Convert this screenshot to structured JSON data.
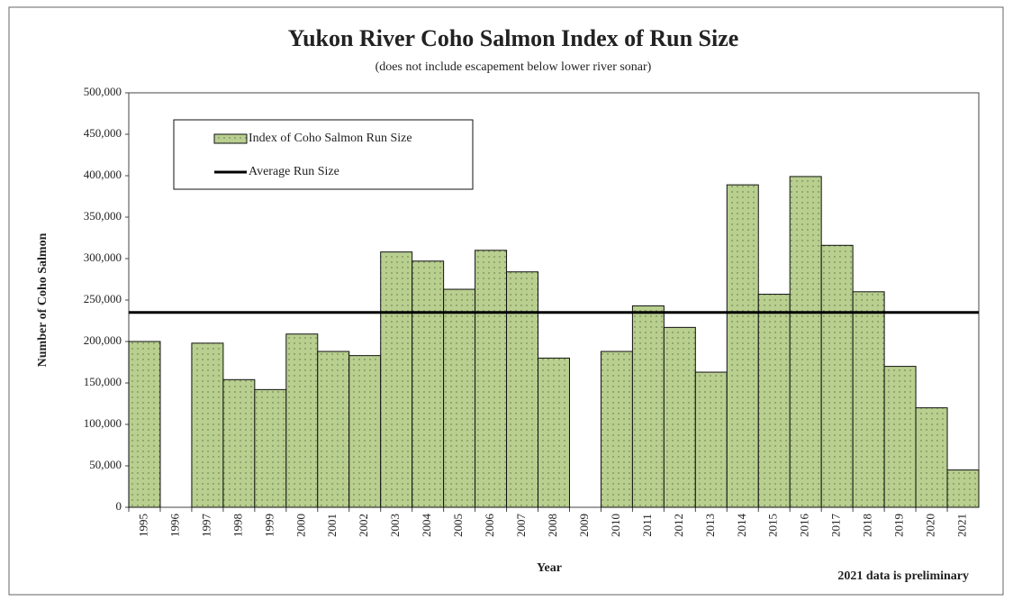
{
  "chart_data": {
    "type": "bar",
    "title": "Yukon River Coho Salmon Index of Run Size",
    "subtitle": "(does not include escapement below lower river sonar)",
    "y_label": "Number of Coho Salmon",
    "x_label": "Year",
    "note": "2021 data is preliminary",
    "categories": [
      "1995",
      "1996",
      "1997",
      "1998",
      "1999",
      "2000",
      "2001",
      "2002",
      "2003",
      "2004",
      "2005",
      "2006",
      "2007",
      "2008",
      "2009",
      "2010",
      "2011",
      "2012",
      "2013",
      "2014",
      "2015",
      "2016",
      "2017",
      "2018",
      "2019",
      "2020",
      "2021"
    ],
    "series": [
      {
        "name": "Index of Coho Salmon Run Size",
        "color": "#b8cf90",
        "values": [
          200000,
          null,
          198000,
          154000,
          142000,
          209000,
          188000,
          183000,
          308000,
          297000,
          263000,
          310000,
          284000,
          180000,
          null,
          188000,
          243000,
          217000,
          163000,
          389000,
          257000,
          399000,
          316000,
          260000,
          170000,
          120000,
          45000
        ]
      }
    ],
    "average": {
      "name": "Average Run Size",
      "value": 235000,
      "color": "#000000"
    },
    "ylim": [
      0,
      500000
    ],
    "yticks": [
      0,
      {
        "value": 50000,
        "label": "50,000"
      },
      {
        "value": 100000,
        "label": "100,000"
      },
      {
        "value": 150000,
        "label": "150,000"
      },
      {
        "value": 200000,
        "label": "200,000"
      },
      {
        "value": 250000,
        "label": "250,000"
      },
      {
        "value": 300000,
        "label": "300,000"
      },
      {
        "value": 350000,
        "label": "350,000"
      },
      {
        "value": 400000,
        "label": "400,000"
      },
      {
        "value": 450000,
        "label": "450,000"
      },
      {
        "value": 500000,
        "label": "500,000"
      }
    ],
    "legend": "upper left"
  }
}
